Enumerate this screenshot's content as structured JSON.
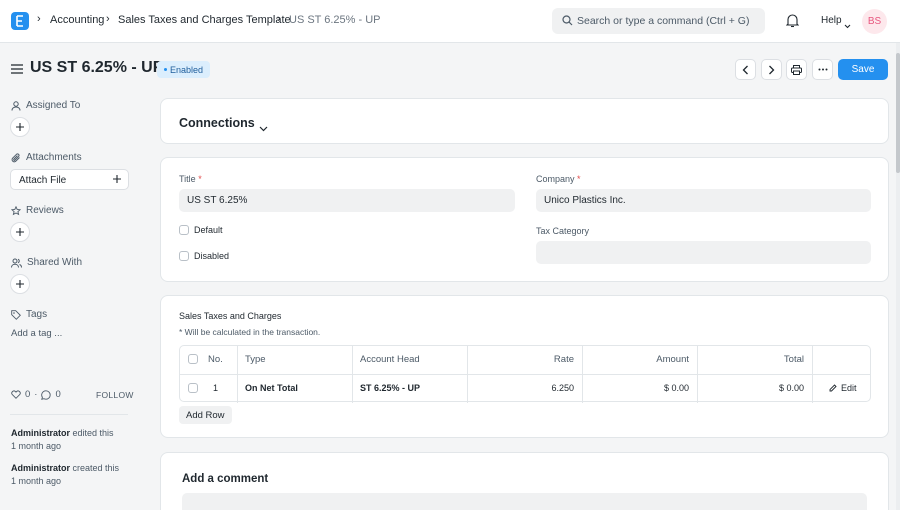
{
  "breadcrumb": [
    "Accounting",
    "Sales Taxes and Charges Template",
    "US ST 6.25% - UP"
  ],
  "search": {
    "placeholder": "Search or type a command (Ctrl + G)"
  },
  "header": {
    "help_label": "Help",
    "avatar_initials": "BS"
  },
  "page": {
    "title": "US ST 6.25% - UP",
    "status": "Enabled",
    "save_label": "Save"
  },
  "sidebar": {
    "assigned_to": "Assigned To",
    "attachments": "Attachments",
    "attach_file": "Attach File",
    "reviews": "Reviews",
    "shared_with": "Shared With",
    "tags": "Tags",
    "add_tag": "Add a tag ...",
    "likes": "0",
    "comments": "0",
    "follow": "FOLLOW",
    "activity": [
      {
        "user": "Administrator",
        "action": "edited this",
        "time": "1 month ago"
      },
      {
        "user": "Administrator",
        "action": "created this",
        "time": "1 month ago"
      }
    ]
  },
  "connections": {
    "title": "Connections"
  },
  "form": {
    "title_label": "Title",
    "title_value": "US ST 6.25%",
    "company_label": "Company",
    "company_value": "Unico Plastics Inc.",
    "default_label": "Default",
    "disabled_label": "Disabled",
    "tax_category_label": "Tax Category",
    "tax_category_value": ""
  },
  "taxes": {
    "section_title": "Sales Taxes and Charges",
    "description": "* Will be calculated in the transaction.",
    "columns": [
      "No.",
      "Type",
      "Account Head",
      "Rate",
      "Amount",
      "Total"
    ],
    "rows": [
      {
        "no": "1",
        "type": "On Net Total",
        "account_head": "ST 6.25% - UP",
        "rate": "6.250",
        "amount": "$ 0.00",
        "total": "$ 0.00",
        "edit": "Edit"
      }
    ],
    "add_row": "Add Row"
  },
  "comment": {
    "title": "Add a comment"
  },
  "colors": {
    "accent": "#2490ef",
    "badge_bg": "#dbeefd",
    "avatar_bg": "#fde8ec",
    "avatar_text": "#e8577f"
  },
  "icons": [
    "app-logo-icon",
    "chevron-right-icon",
    "search-icon",
    "bell-icon",
    "chevron-down-icon",
    "hamburger-icon",
    "chevron-left-icon",
    "printer-icon",
    "more-icon",
    "user-icon",
    "paperclip-icon",
    "star-icon",
    "users-icon",
    "tag-icon",
    "heart-icon",
    "comment-icon",
    "plus-icon",
    "pencil-icon"
  ]
}
